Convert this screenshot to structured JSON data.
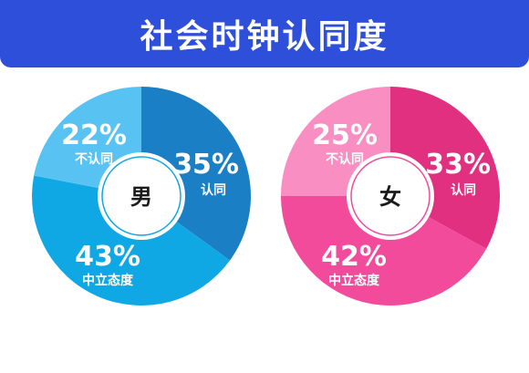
{
  "title": "社会时钟认同度",
  "colors": {
    "banner": "#2e4fd9",
    "male": [
      "#1a7fc4",
      "#0fa8e5",
      "#58c3f2"
    ],
    "female": [
      "#e0307f",
      "#f24b9c",
      "#f98ec2"
    ]
  },
  "chart_data": [
    {
      "type": "pie",
      "center_label": "男",
      "slices": [
        {
          "label": "认同",
          "value": 35,
          "display": "35%"
        },
        {
          "label": "中立态度",
          "value": 43,
          "display": "43%"
        },
        {
          "label": "不认同",
          "value": 22,
          "display": "22%"
        }
      ]
    },
    {
      "type": "pie",
      "center_label": "女",
      "slices": [
        {
          "label": "认同",
          "value": 33,
          "display": "33%"
        },
        {
          "label": "中立态度",
          "value": 42,
          "display": "42%"
        },
        {
          "label": "不认同",
          "value": 25,
          "display": "25%"
        }
      ]
    }
  ]
}
